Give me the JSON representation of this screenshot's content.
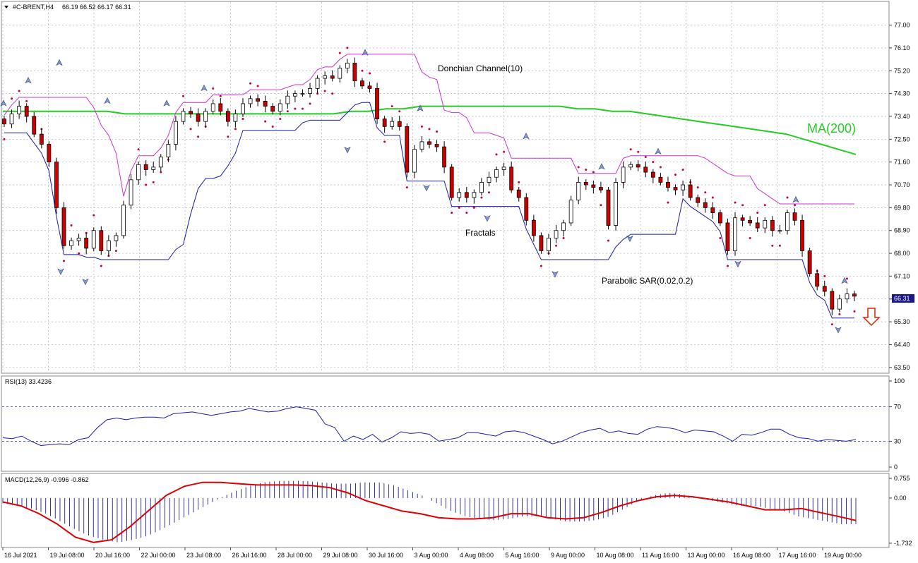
{
  "header": {
    "symbol_label": "#C-BRENT,H4",
    "ohlc_label": "66.19 66.52 66.17 66.31",
    "rsi_label": "RSI(13) 33.4236",
    "macd_label": "MACD(12,26,9) -0.996 -0.862"
  },
  "annotations": {
    "donchian": "Donchian Channel(10)",
    "ma": "MA(200)",
    "fractals": "Fractals",
    "sar": "Parabolic SAR(0.02,0.2)"
  },
  "colors": {
    "bull_candle": "#ffffff",
    "bear_candle": "#cc0000",
    "ma": "#22cc22",
    "donchian_upper": "#cc33cc",
    "donchian_lower": "#1a1aaa",
    "sar": "#cc0033",
    "rsi_line": "#1a1aaa",
    "macd_signal": "#dd0000",
    "macd_hist": "#000080",
    "grid": "#b0b0c0",
    "arrow": "#dd2200"
  },
  "chart_data": [
    {
      "type": "candlestick",
      "name": "price",
      "last_price": "66.31",
      "y_ticks": [
        "77.00",
        "76.10",
        "75.20",
        "74.30",
        "73.40",
        "72.50",
        "71.60",
        "70.70",
        "69.80",
        "68.90",
        "68.00",
        "67.10",
        "66.20",
        "65.30",
        "64.40",
        "63.50"
      ],
      "ylim": [
        63.3,
        77.6
      ],
      "x_tick_labels": [
        "16 Jul 2021",
        "19 Jul 08:00",
        "20 Jul 16:00",
        "22 Jul 00:00",
        "23 Jul 08:00",
        "26 Jul 16:00",
        "28 Jul 00:00",
        "29 Jul 08:00",
        "30 Jul 16:00",
        "3 Aug 00:00",
        "4 Aug 08:00",
        "5 Aug 16:00",
        "9 Aug 00:00",
        "10 Aug 08:00",
        "11 Aug 16:00",
        "13 Aug 00:00",
        "16 Aug 08:00",
        "17 Aug 16:00",
        "19 Aug 00:00"
      ],
      "closes": [
        73.1,
        73.5,
        73.8,
        73.4,
        72.7,
        72.3,
        71.6,
        69.8,
        68.3,
        68.5,
        68.6,
        68.2,
        68.9,
        68.1,
        68.5,
        68.7,
        69.9,
        70.9,
        71.5,
        71.3,
        71.4,
        71.8,
        72.3,
        73.2,
        73.6,
        73.5,
        73.2,
        73.6,
        73.9,
        73.6,
        73.2,
        73.5,
        73.9,
        74.1,
        74.0,
        73.8,
        73.6,
        73.9,
        74.2,
        74.3,
        74.3,
        74.5,
        74.9,
        75.0,
        74.9,
        75.3,
        75.5,
        74.8,
        74.6,
        74.5,
        73.3,
        73.0,
        73.2,
        73.0,
        71.2,
        72.1,
        72.4,
        72.3,
        72.2,
        71.4,
        70.2,
        70.4,
        70.2,
        70.4,
        70.8,
        71.0,
        71.3,
        71.4,
        70.5,
        70.2,
        69.3,
        68.7,
        68.1,
        68.6,
        68.9,
        69.2,
        70.1,
        70.8,
        70.7,
        70.6,
        70.5,
        69.1,
        70.8,
        71.4,
        71.5,
        71.4,
        71.2,
        71.0,
        70.8,
        70.6,
        70.5,
        70.7,
        70.2,
        70.0,
        69.8,
        69.6,
        69.2,
        68.1,
        69.4,
        69.3,
        69.2,
        69.0,
        69.3,
        68.9,
        68.9,
        69.6,
        69.3,
        68.1,
        67.2,
        66.7,
        66.5,
        65.8,
        66.2,
        66.4,
        66.31
      ],
      "ma200": [
        73.6,
        73.6,
        73.6,
        73.6,
        73.6,
        73.6,
        73.6,
        73.5,
        73.5,
        73.5,
        73.5,
        73.5,
        73.5,
        73.5,
        73.5,
        73.5,
        73.5,
        73.5,
        73.5,
        73.5,
        73.6,
        73.6,
        73.7,
        73.7,
        73.8,
        73.8,
        73.8,
        73.8,
        73.8,
        73.8,
        73.8,
        73.8,
        73.8,
        73.7,
        73.7,
        73.6,
        73.6,
        73.5,
        73.4,
        73.3,
        73.2,
        73.1,
        73.0,
        72.9,
        72.8,
        72.7,
        72.5,
        72.3,
        72.1,
        71.9
      ],
      "fractals_up": [
        [
          5,
          73.9
        ],
        [
          40,
          74.8
        ],
        [
          84,
          75.5
        ],
        [
          152,
          74.0
        ],
        [
          236,
          73.9
        ],
        [
          289,
          74.5
        ],
        [
          517,
          75.9
        ],
        [
          595,
          73.7
        ],
        [
          745,
          72.6
        ],
        [
          852,
          71.4
        ],
        [
          932,
          72.0
        ],
        [
          1127,
          70.1
        ],
        [
          1196,
          66.9
        ]
      ],
      "fractals_down": [
        [
          86,
          67.3
        ],
        [
          121,
          66.9
        ],
        [
          492,
          72.1
        ],
        [
          604,
          70.6
        ],
        [
          690,
          69.4
        ],
        [
          786,
          67.2
        ],
        [
          892,
          68.6
        ],
        [
          1045,
          67.6
        ],
        [
          1187,
          65.0
        ]
      ]
    },
    {
      "type": "line",
      "name": "RSI(13)",
      "ylim": [
        0,
        100
      ],
      "y_ticks": [
        "100",
        "70",
        "30",
        "0"
      ],
      "levels": [
        70,
        30
      ],
      "values": [
        34,
        33,
        36,
        30,
        25,
        26,
        27,
        26,
        32,
        34,
        46,
        55,
        57,
        55,
        57,
        58,
        58,
        57,
        62,
        63,
        64,
        62,
        60,
        62,
        64,
        65,
        68,
        66,
        64,
        65,
        68,
        70,
        68,
        66,
        50,
        46,
        30,
        36,
        32,
        38,
        29,
        34,
        41,
        39,
        40,
        38,
        30,
        32,
        34,
        40,
        40,
        38,
        36,
        41,
        42,
        40,
        36,
        32,
        27,
        30,
        35,
        40,
        43,
        45,
        40,
        42,
        39,
        38,
        44,
        47,
        46,
        44,
        40,
        43,
        42,
        41,
        36,
        30,
        38,
        37,
        40,
        44,
        44,
        38,
        34,
        33,
        30,
        32,
        31,
        30,
        32
      ]
    },
    {
      "type": "bar+line",
      "name": "MACD(12,26,9)",
      "ylim": [
        -1.732,
        0.755
      ],
      "y_ticks": [
        "0.755",
        "0.00",
        "-1.732"
      ],
      "hist": [
        -0.2,
        -0.3,
        -0.4,
        -0.6,
        -0.9,
        -1.2,
        -1.45,
        -1.6,
        -1.7,
        -1.6,
        -1.45,
        -1.2,
        -0.9,
        -0.6,
        -0.3,
        0.0,
        0.25,
        0.45,
        0.6,
        0.65,
        0.66,
        0.65,
        0.6,
        0.55,
        0.55,
        0.6,
        0.6,
        0.5,
        0.3,
        0.1,
        -0.2,
        -0.5,
        -0.7,
        -0.8,
        -0.85,
        -0.8,
        -0.7,
        -0.7,
        -0.8,
        -0.9,
        -0.9,
        -0.85,
        -0.7,
        -0.4,
        -0.1,
        0.1,
        0.2,
        0.15,
        0.0,
        -0.1,
        -0.2,
        -0.3,
        -0.3,
        -0.4,
        -0.5,
        -0.7,
        -0.8,
        -0.9,
        -1.0,
        -1.0
      ],
      "signal": [
        -0.15,
        -0.3,
        -0.6,
        -1.0,
        -1.5,
        -1.7,
        -1.6,
        -1.1,
        -0.5,
        0.1,
        0.45,
        0.6,
        0.6,
        0.55,
        0.5,
        0.5,
        0.5,
        0.48,
        0.4,
        0.2,
        -0.1,
        -0.3,
        -0.5,
        -0.6,
        -0.75,
        -0.8,
        -0.8,
        -0.75,
        -0.6,
        -0.6,
        -0.75,
        -0.8,
        -0.75,
        -0.55,
        -0.3,
        -0.1,
        0.05,
        0.1,
        0.05,
        -0.05,
        -0.15,
        -0.3,
        -0.45,
        -0.45,
        -0.4,
        -0.55,
        -0.7,
        -0.86
      ]
    }
  ]
}
